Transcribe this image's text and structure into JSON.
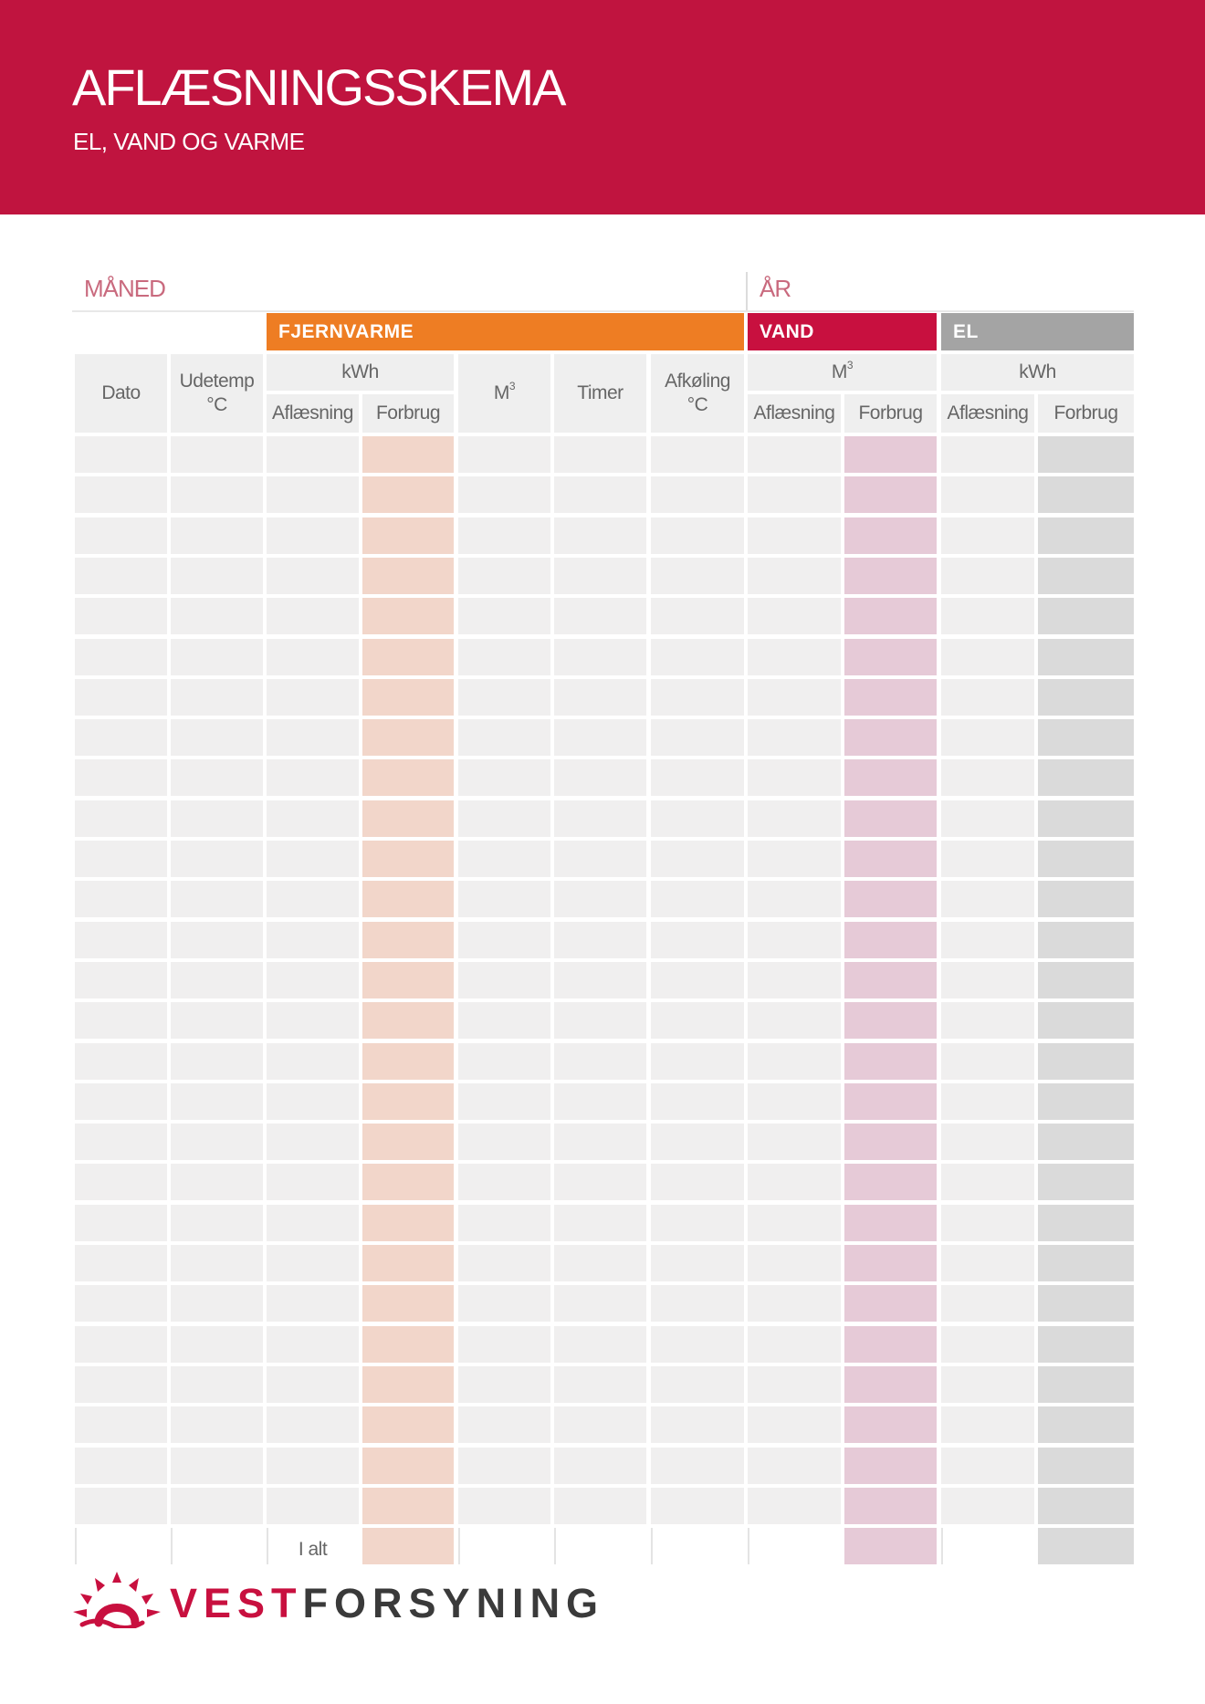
{
  "header": {
    "title": "AFLÆSNINGSSKEMA",
    "subtitle": "EL, VAND OG VARME"
  },
  "fields": {
    "month_label": "MÅNED",
    "year_label": "ÅR"
  },
  "groups": {
    "fjernvarme": "FJERNVARME",
    "vand": "VAND",
    "el": "EL"
  },
  "columns": {
    "dato": "Dato",
    "udetemp": "Udetemp",
    "unit_c": "°C",
    "kwh": "kWh",
    "m3": "M",
    "m3_sup": "3",
    "timer": "Timer",
    "afkoling": "Afkøling",
    "aflaesning": "Aflæsning",
    "forbrug": "Forbrug"
  },
  "footer": {
    "total_label": "I alt"
  },
  "logo": {
    "name_part1": "VEST",
    "name_part2": "FORSYNING"
  },
  "colors": {
    "brand": "#C0143F",
    "fjernvarme": "#EE7D23",
    "vand": "#C8103F",
    "el": "#A4A4A4",
    "cell": "#F0EFEF",
    "fj_forbrug_fill": "#F2D6CA",
    "vand_forbrug_fill": "#E6CAD7",
    "el_forbrug_fill": "#DADADA"
  },
  "table": {
    "data_rows": 27
  }
}
